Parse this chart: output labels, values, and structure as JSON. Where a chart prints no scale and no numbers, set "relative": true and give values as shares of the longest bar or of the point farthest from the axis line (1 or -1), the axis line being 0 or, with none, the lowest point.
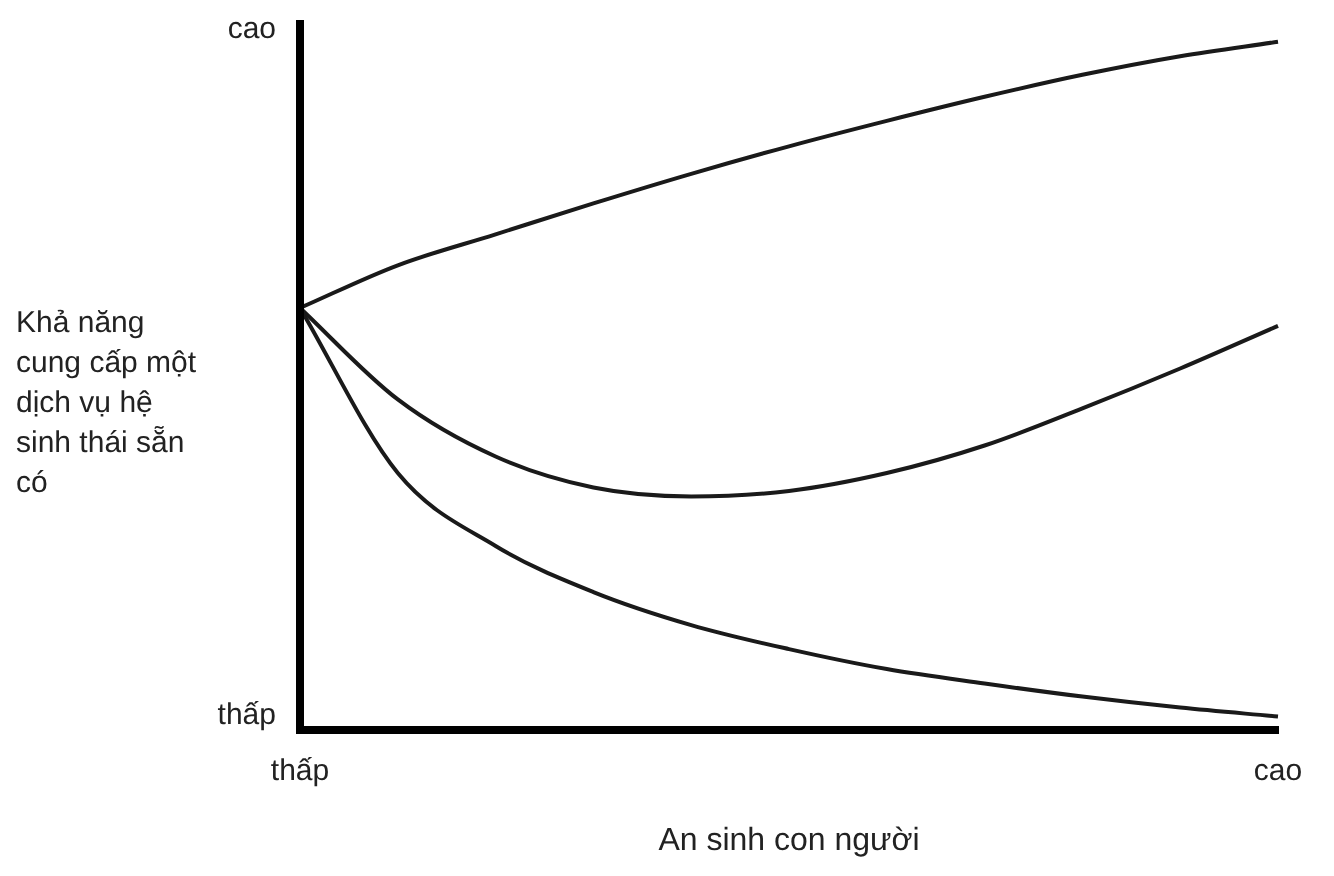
{
  "chart_data": {
    "type": "line",
    "relative": true,
    "xlabel": "An sinh con người",
    "ylabel": "Khả năng cung cấp một dịch vụ hệ sinh thái sẵn có",
    "categories": [
      "thấp",
      null,
      null,
      null,
      null,
      null,
      null,
      null,
      null,
      null,
      "cao"
    ],
    "series": [
      {
        "color": "#1a1a1a",
        "values": [
          0.613,
          0.675,
          0.72,
          0.765,
          0.808,
          0.848,
          0.885,
          0.92,
          0.952,
          0.979,
          1
        ]
      },
      {
        "color": "#1a1a1a",
        "values": [
          0.613,
          0.48,
          0.397,
          0.352,
          0.339,
          0.347,
          0.373,
          0.413,
          0.467,
          0.525,
          0.587
        ]
      },
      {
        "color": "#1a1a1a",
        "values": [
          0.613,
          0.373,
          0.267,
          0.2,
          0.152,
          0.117,
          0.088,
          0.067,
          0.048,
          0.032,
          0.019
        ]
      }
    ],
    "annotations": [
      "cao",
      "thấp"
    ],
    "marker": "none",
    "grid": false,
    "legend": false
  }
}
